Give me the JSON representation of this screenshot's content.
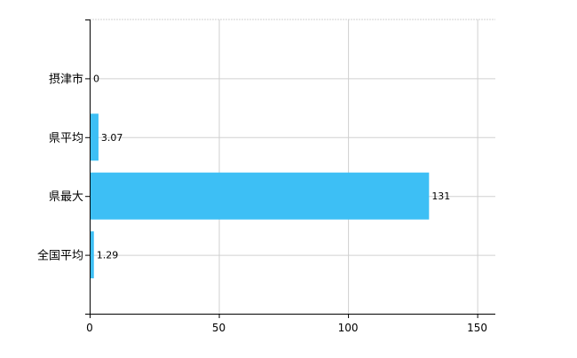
{
  "chart_data": {
    "type": "bar",
    "orientation": "horizontal",
    "categories": [
      "摂津市",
      "県平均",
      "県最大",
      "全国平均"
    ],
    "values": [
      0,
      3.07,
      131,
      1.29
    ],
    "data_labels": [
      "0",
      "3.07",
      "131",
      "1.29"
    ],
    "title": "",
    "xlabel": "",
    "ylabel": "",
    "xlim": [
      0,
      157
    ],
    "xticks": [
      0,
      50,
      100,
      150
    ],
    "xtick_labels": [
      "0",
      "50",
      "100",
      "150"
    ],
    "grid": true,
    "legend": "none",
    "colors": {
      "bar": "#3dbff5",
      "grid": "#d0d0d0",
      "axis": "#000000"
    }
  }
}
